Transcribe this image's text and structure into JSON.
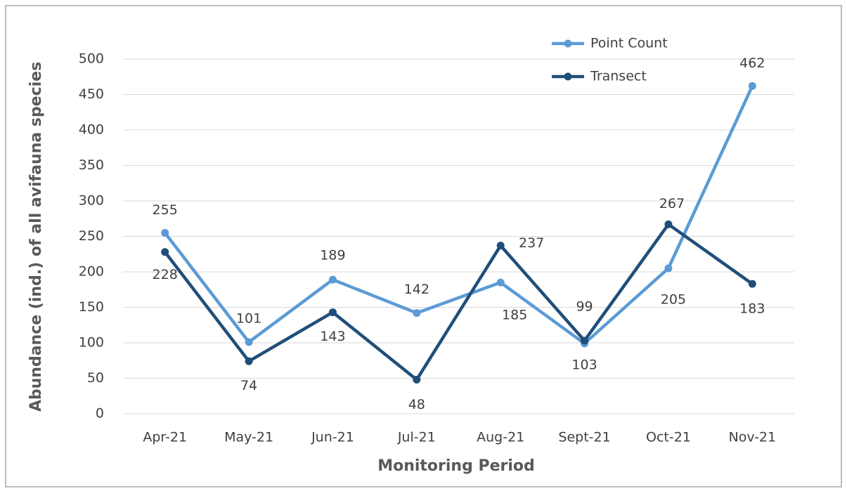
{
  "chart_data": {
    "type": "line",
    "y_label": "Abundance (ind.) of all avifauna species",
    "x_label": "Monitoring Period",
    "categories": [
      "Apr-21",
      "May-21",
      "Jun-21",
      "Jul-21",
      "Aug-21",
      "Sept-21",
      "Oct-21",
      "Nov-21"
    ],
    "series": [
      {
        "name": "Point Count",
        "color": "#5b9bd5",
        "values": [
          255,
          101,
          189,
          142,
          185,
          99,
          205,
          462
        ]
      },
      {
        "name": "Transect",
        "color": "#1f4e79",
        "values": [
          228,
          74,
          143,
          48,
          237,
          103,
          267,
          183
        ]
      }
    ],
    "ylim": [
      0,
      500
    ],
    "yticks": [
      0,
      50,
      100,
      150,
      200,
      250,
      300,
      350,
      400,
      450,
      500
    ],
    "grid": true,
    "legend": "top-right"
  }
}
